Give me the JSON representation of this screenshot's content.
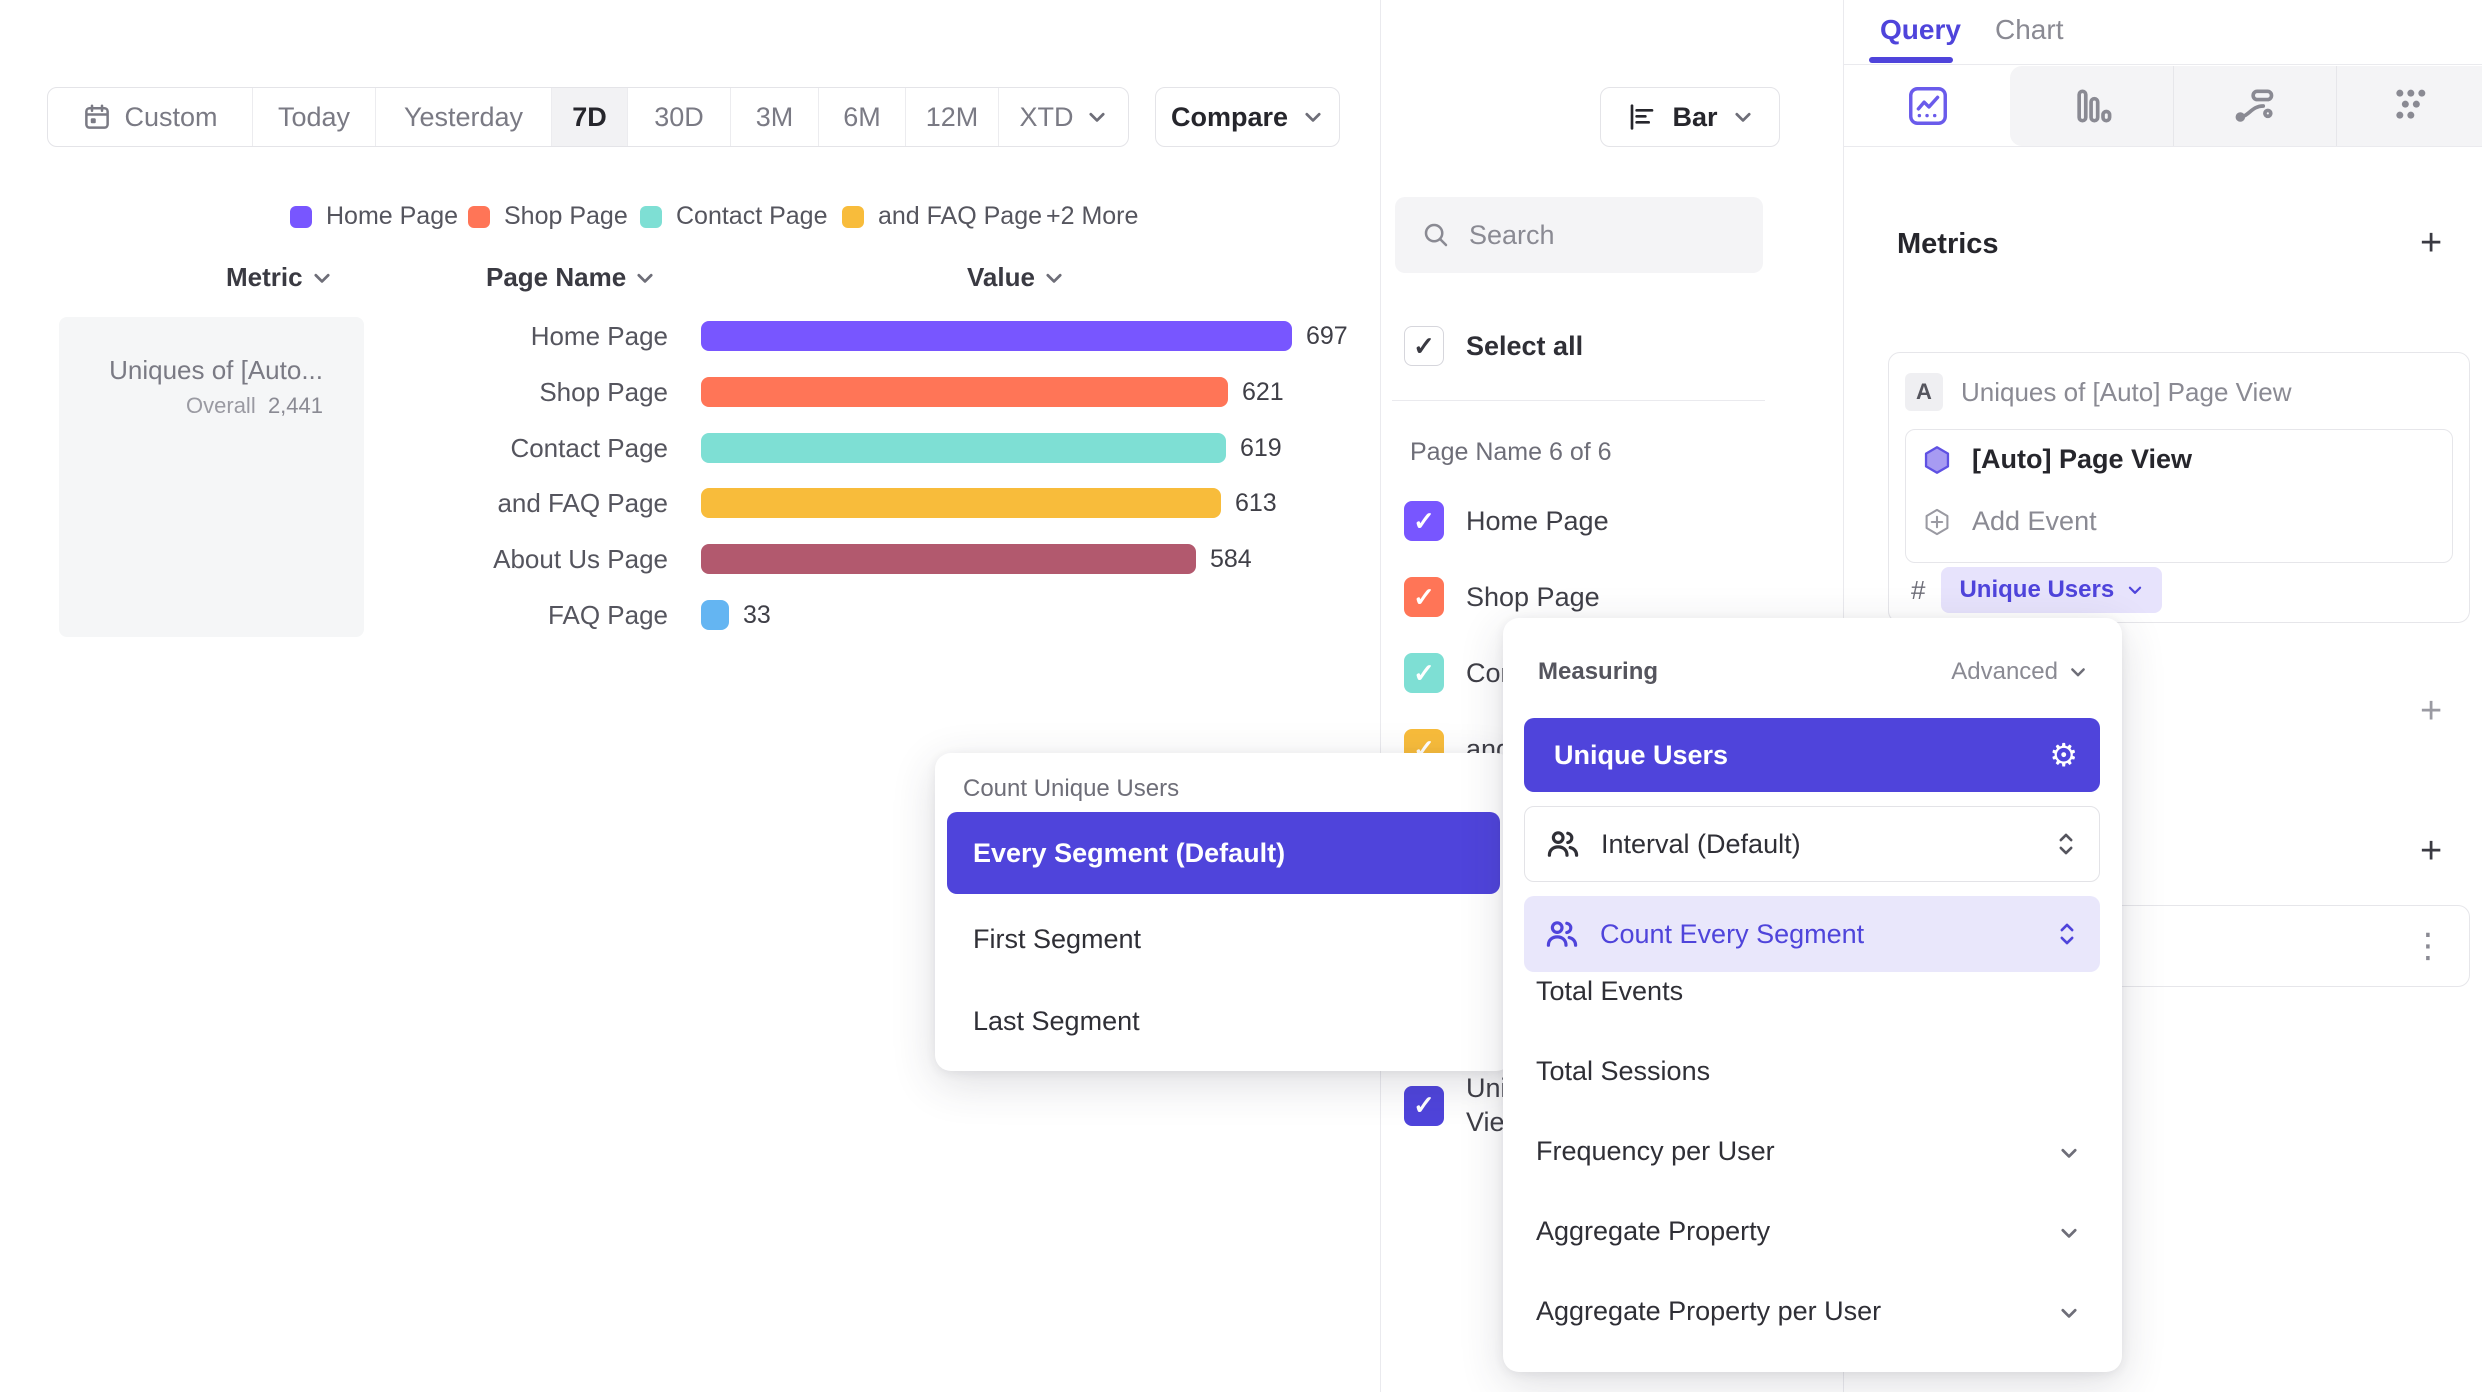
{
  "icons": {
    "plus": "+",
    "check": "✓",
    "kebab": "⋮",
    "gear": "⚙",
    "hash": "#"
  },
  "toolbar": {
    "ranges": [
      {
        "label": "Custom"
      },
      {
        "label": "Today"
      },
      {
        "label": "Yesterday"
      },
      {
        "label": "7D",
        "active": true
      },
      {
        "label": "30D"
      },
      {
        "label": "3M"
      },
      {
        "label": "6M"
      },
      {
        "label": "12M"
      },
      {
        "label": "XTD"
      }
    ],
    "compare_label": "Compare",
    "chart_type_label": "Bar"
  },
  "legend": {
    "items": [
      {
        "label": "Home Page"
      },
      {
        "label": "Shop Page"
      },
      {
        "label": "Contact Page"
      },
      {
        "label": "and FAQ Page"
      }
    ],
    "more_label": "+2 More"
  },
  "chart_data": {
    "type": "bar",
    "orientation": "horizontal",
    "title": "Uniques of [Auto] Page View",
    "breakdown": "Page Name",
    "value_axis_label": "Value",
    "overall_total": 2441,
    "categories": [
      "Home Page",
      "Shop Page",
      "Contact Page",
      "and FAQ Page",
      "About Us Page",
      "FAQ Page"
    ],
    "values": [
      697,
      621,
      619,
      613,
      584,
      33
    ],
    "colors": [
      "#7856FF",
      "#FF7557",
      "#7EDFD4",
      "#F8BC3B",
      "#B2596E",
      "#64B5F2"
    ],
    "legend_more": "+2 More"
  },
  "table": {
    "headers": {
      "metric": "Metric",
      "page_name": "Page Name",
      "value": "Value"
    },
    "metric_card": {
      "title": "Uniques of [Auto...",
      "overall_label": "Overall",
      "overall_value": "2,441"
    }
  },
  "filter_panel": {
    "search_placeholder": "Search",
    "select_all_label": "Select all",
    "group_label": "Page Name 6 of 6",
    "items": [
      {
        "label": "Home Page",
        "color": "#7856FF",
        "checked": true
      },
      {
        "label": "Shop Page",
        "color": "#FF7557",
        "checked": true
      },
      {
        "label": "Contact Page",
        "color": "#7EDFD4",
        "checked": true
      },
      {
        "label": "and FAQ Page",
        "color": "#F8BC3B",
        "checked": true
      }
    ],
    "partial_item": {
      "line1": "Uni",
      "line2": "Vie",
      "color": "#4F44DB",
      "checked": true
    }
  },
  "segment_popover": {
    "title": "Count Unique Users",
    "selected_label": "Every Segment (Default)",
    "options": [
      {
        "label": "First Segment"
      },
      {
        "label": "Last Segment"
      }
    ]
  },
  "measuring_popover": {
    "title": "Measuring",
    "advanced_label": "Advanced",
    "selected_label": "Unique Users",
    "controls": [
      {
        "label": "Interval (Default)"
      },
      {
        "label": "Count Every Segment"
      }
    ],
    "options": [
      {
        "label": "Total Events",
        "chevron": false
      },
      {
        "label": "Total Sessions",
        "chevron": false
      },
      {
        "label": "Frequency per User",
        "chevron": true
      },
      {
        "label": "Aggregate Property",
        "chevron": true
      },
      {
        "label": "Aggregate Property per User",
        "chevron": true
      }
    ]
  },
  "sidebar": {
    "tabs": [
      {
        "label": "Query"
      },
      {
        "label": "Chart"
      }
    ],
    "metrics_heading": "Metrics",
    "metric_card": {
      "badge": "A",
      "title": "Uniques of [Auto] Page View",
      "event_label": "[Auto] Page View",
      "add_event_label": "Add Event",
      "count_prefix": "#",
      "count_chip_label": "Unique Users"
    }
  },
  "colors": {
    "accent": "#4F44DB",
    "lilac_bg": "#E9E7FB",
    "chip_bg": "#E7E3FC"
  }
}
